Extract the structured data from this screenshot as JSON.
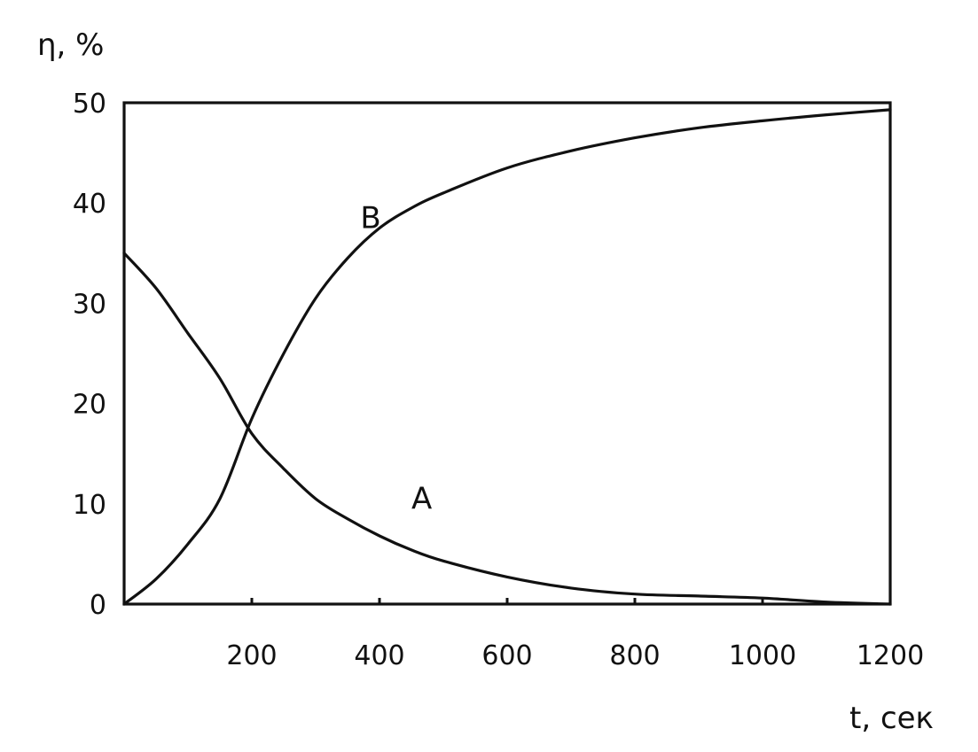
{
  "chart_data": {
    "type": "line",
    "title": "",
    "ylabel": "η, %",
    "xlabel": "t, сек",
    "xlim": [
      0,
      1200
    ],
    "ylim": [
      0,
      50
    ],
    "grid": false,
    "y_ticks": [
      0,
      10,
      20,
      30,
      40,
      50
    ],
    "y_tick_labels": [
      "0",
      "10",
      "20",
      "30",
      "40",
      "50"
    ],
    "x_ticks": [
      200,
      400,
      600,
      800,
      1000,
      1200
    ],
    "x_tick_labels": [
      "200",
      "400",
      "600",
      "800",
      "1000",
      "1200"
    ],
    "series": [
      {
        "name": "A",
        "x": [
          0,
          50,
          100,
          150,
          200,
          250,
          300,
          350,
          400,
          450,
          500,
          600,
          700,
          800,
          900,
          1000,
          1100,
          1200
        ],
        "y": [
          35,
          31.5,
          27,
          22.5,
          17,
          13.5,
          10.5,
          8.5,
          6.8,
          5.4,
          4.3,
          2.7,
          1.6,
          1.0,
          0.8,
          0.6,
          0.2,
          0
        ]
      },
      {
        "name": "B",
        "x": [
          0,
          50,
          100,
          150,
          200,
          250,
          300,
          350,
          400,
          450,
          500,
          600,
          700,
          800,
          900,
          1000,
          1100,
          1200
        ],
        "y": [
          0,
          2.5,
          6,
          10.5,
          18.5,
          25,
          30.5,
          34.5,
          37.5,
          39.5,
          41,
          43.5,
          45.2,
          46.5,
          47.5,
          48.2,
          48.8,
          49.3
        ]
      }
    ]
  }
}
